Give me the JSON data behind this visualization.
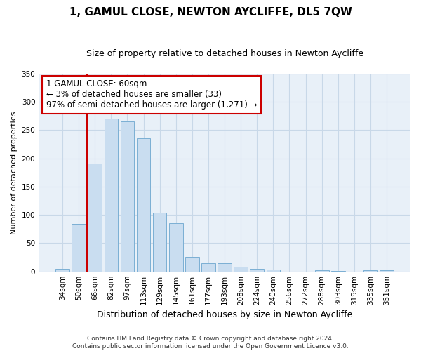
{
  "title": "1, GAMUL CLOSE, NEWTON AYCLIFFE, DL5 7QW",
  "subtitle": "Size of property relative to detached houses in Newton Aycliffe",
  "xlabel": "Distribution of detached houses by size in Newton Aycliffe",
  "ylabel": "Number of detached properties",
  "categories": [
    "34sqm",
    "50sqm",
    "66sqm",
    "82sqm",
    "97sqm",
    "113sqm",
    "129sqm",
    "145sqm",
    "161sqm",
    "177sqm",
    "193sqm",
    "208sqm",
    "224sqm",
    "240sqm",
    "256sqm",
    "272sqm",
    "288sqm",
    "303sqm",
    "319sqm",
    "335sqm",
    "351sqm"
  ],
  "values": [
    5,
    84,
    191,
    271,
    265,
    236,
    104,
    85,
    26,
    15,
    14,
    8,
    4,
    3,
    0,
    0,
    2,
    1,
    0,
    2,
    2
  ],
  "bar_color": "#c9ddf0",
  "bar_edge_color": "#7bafd4",
  "vline_color": "#cc0000",
  "vline_position": 1.5,
  "annotation_text": "1 GAMUL CLOSE: 60sqm\n← 3% of detached houses are smaller (33)\n97% of semi-detached houses are larger (1,271) →",
  "annotation_box_facecolor": "#ffffff",
  "annotation_box_edgecolor": "#cc0000",
  "ylim": [
    0,
    350
  ],
  "yticks": [
    0,
    50,
    100,
    150,
    200,
    250,
    300,
    350
  ],
  "grid_color": "#c8d8e8",
  "background_color": "#e8f0f8",
  "footer_text": "Contains HM Land Registry data © Crown copyright and database right 2024.\nContains public sector information licensed under the Open Government Licence v3.0.",
  "title_fontsize": 11,
  "subtitle_fontsize": 9,
  "xlabel_fontsize": 9,
  "ylabel_fontsize": 8,
  "tick_fontsize": 7.5,
  "annotation_fontsize": 8.5,
  "footer_fontsize": 6.5
}
